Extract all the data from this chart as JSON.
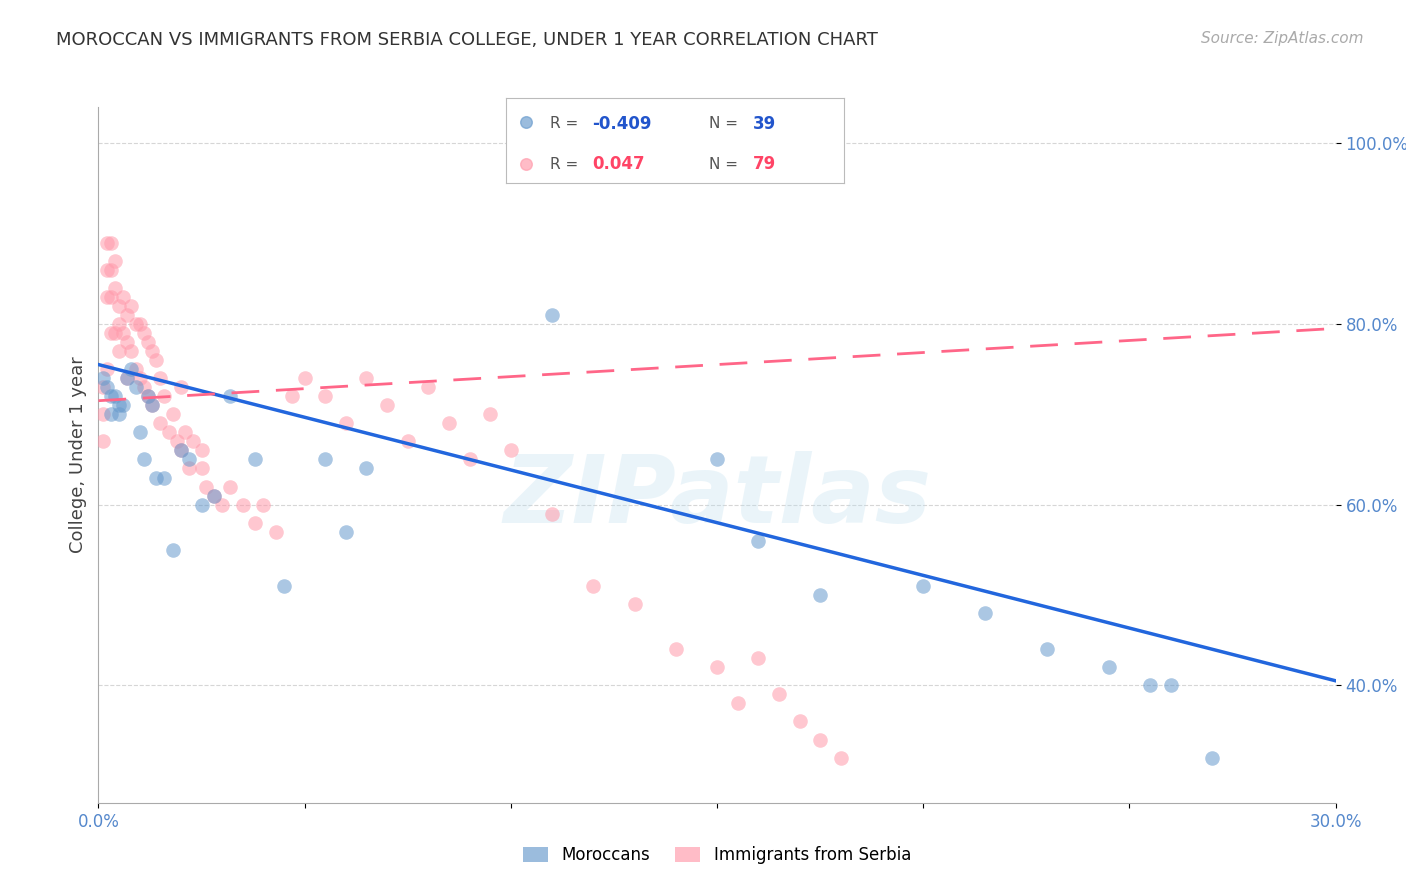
{
  "title": "MOROCCAN VS IMMIGRANTS FROM SERBIA COLLEGE, UNDER 1 YEAR CORRELATION CHART",
  "source": "Source: ZipAtlas.com",
  "ylabel": "College, Under 1 year",
  "watermark": "ZIPatlas",
  "legend_blue_r": "-0.409",
  "legend_blue_n": "39",
  "legend_pink_r": "0.047",
  "legend_pink_n": "79",
  "xmin": 0.0,
  "xmax": 0.3,
  "ymin": 0.27,
  "ymax": 1.04,
  "yticks": [
    0.4,
    0.6,
    0.8,
    1.0
  ],
  "ytick_labels": [
    "40.0%",
    "60.0%",
    "80.0%",
    "100.0%"
  ],
  "xticks": [
    0.0,
    0.05,
    0.1,
    0.15,
    0.2,
    0.25,
    0.3
  ],
  "xtick_labels": [
    "0.0%",
    "",
    "",
    "",
    "",
    "",
    "30.0%"
  ],
  "blue_color": "#6699CC",
  "pink_color": "#FF99AA",
  "trend_blue_color": "#2266DD",
  "trend_pink_color": "#FF6688",
  "blue_trend_x0": 0.0,
  "blue_trend_y0": 0.755,
  "blue_trend_x1": 0.3,
  "blue_trend_y1": 0.405,
  "pink_trend_x0": 0.0,
  "pink_trend_y0": 0.715,
  "pink_trend_x1": 0.3,
  "pink_trend_y1": 0.795,
  "blue_dots_x": [
    0.001,
    0.002,
    0.003,
    0.003,
    0.004,
    0.005,
    0.005,
    0.006,
    0.007,
    0.008,
    0.009,
    0.01,
    0.011,
    0.012,
    0.013,
    0.014,
    0.016,
    0.018,
    0.02,
    0.022,
    0.025,
    0.028,
    0.032,
    0.038,
    0.045,
    0.055,
    0.06,
    0.065,
    0.11,
    0.15,
    0.16,
    0.175,
    0.2,
    0.215,
    0.23,
    0.245,
    0.255,
    0.26,
    0.27
  ],
  "blue_dots_y": [
    0.74,
    0.73,
    0.72,
    0.7,
    0.72,
    0.71,
    0.7,
    0.71,
    0.74,
    0.75,
    0.73,
    0.68,
    0.65,
    0.72,
    0.71,
    0.63,
    0.63,
    0.55,
    0.66,
    0.65,
    0.6,
    0.61,
    0.72,
    0.65,
    0.51,
    0.65,
    0.57,
    0.64,
    0.81,
    0.65,
    0.56,
    0.5,
    0.51,
    0.48,
    0.44,
    0.42,
    0.4,
    0.4,
    0.32
  ],
  "pink_dots_x": [
    0.001,
    0.001,
    0.001,
    0.002,
    0.002,
    0.002,
    0.002,
    0.003,
    0.003,
    0.003,
    0.003,
    0.004,
    0.004,
    0.004,
    0.005,
    0.005,
    0.005,
    0.006,
    0.006,
    0.007,
    0.007,
    0.007,
    0.008,
    0.008,
    0.009,
    0.009,
    0.01,
    0.01,
    0.011,
    0.011,
    0.012,
    0.012,
    0.013,
    0.013,
    0.014,
    0.015,
    0.015,
    0.016,
    0.017,
    0.018,
    0.019,
    0.02,
    0.021,
    0.022,
    0.023,
    0.025,
    0.026,
    0.028,
    0.03,
    0.032,
    0.035,
    0.038,
    0.04,
    0.043,
    0.047,
    0.05,
    0.055,
    0.06,
    0.065,
    0.07,
    0.075,
    0.08,
    0.085,
    0.09,
    0.095,
    0.1,
    0.11,
    0.12,
    0.13,
    0.14,
    0.15,
    0.155,
    0.16,
    0.165,
    0.17,
    0.175,
    0.18,
    0.02,
    0.025
  ],
  "pink_dots_y": [
    0.73,
    0.7,
    0.67,
    0.89,
    0.86,
    0.83,
    0.75,
    0.89,
    0.86,
    0.83,
    0.79,
    0.87,
    0.84,
    0.79,
    0.82,
    0.8,
    0.77,
    0.83,
    0.79,
    0.81,
    0.78,
    0.74,
    0.82,
    0.77,
    0.8,
    0.75,
    0.8,
    0.74,
    0.79,
    0.73,
    0.78,
    0.72,
    0.77,
    0.71,
    0.76,
    0.74,
    0.69,
    0.72,
    0.68,
    0.7,
    0.67,
    0.73,
    0.68,
    0.64,
    0.67,
    0.66,
    0.62,
    0.61,
    0.6,
    0.62,
    0.6,
    0.58,
    0.6,
    0.57,
    0.72,
    0.74,
    0.72,
    0.69,
    0.74,
    0.71,
    0.67,
    0.73,
    0.69,
    0.65,
    0.7,
    0.66,
    0.59,
    0.51,
    0.49,
    0.44,
    0.42,
    0.38,
    0.43,
    0.39,
    0.36,
    0.34,
    0.32,
    0.66,
    0.64
  ]
}
